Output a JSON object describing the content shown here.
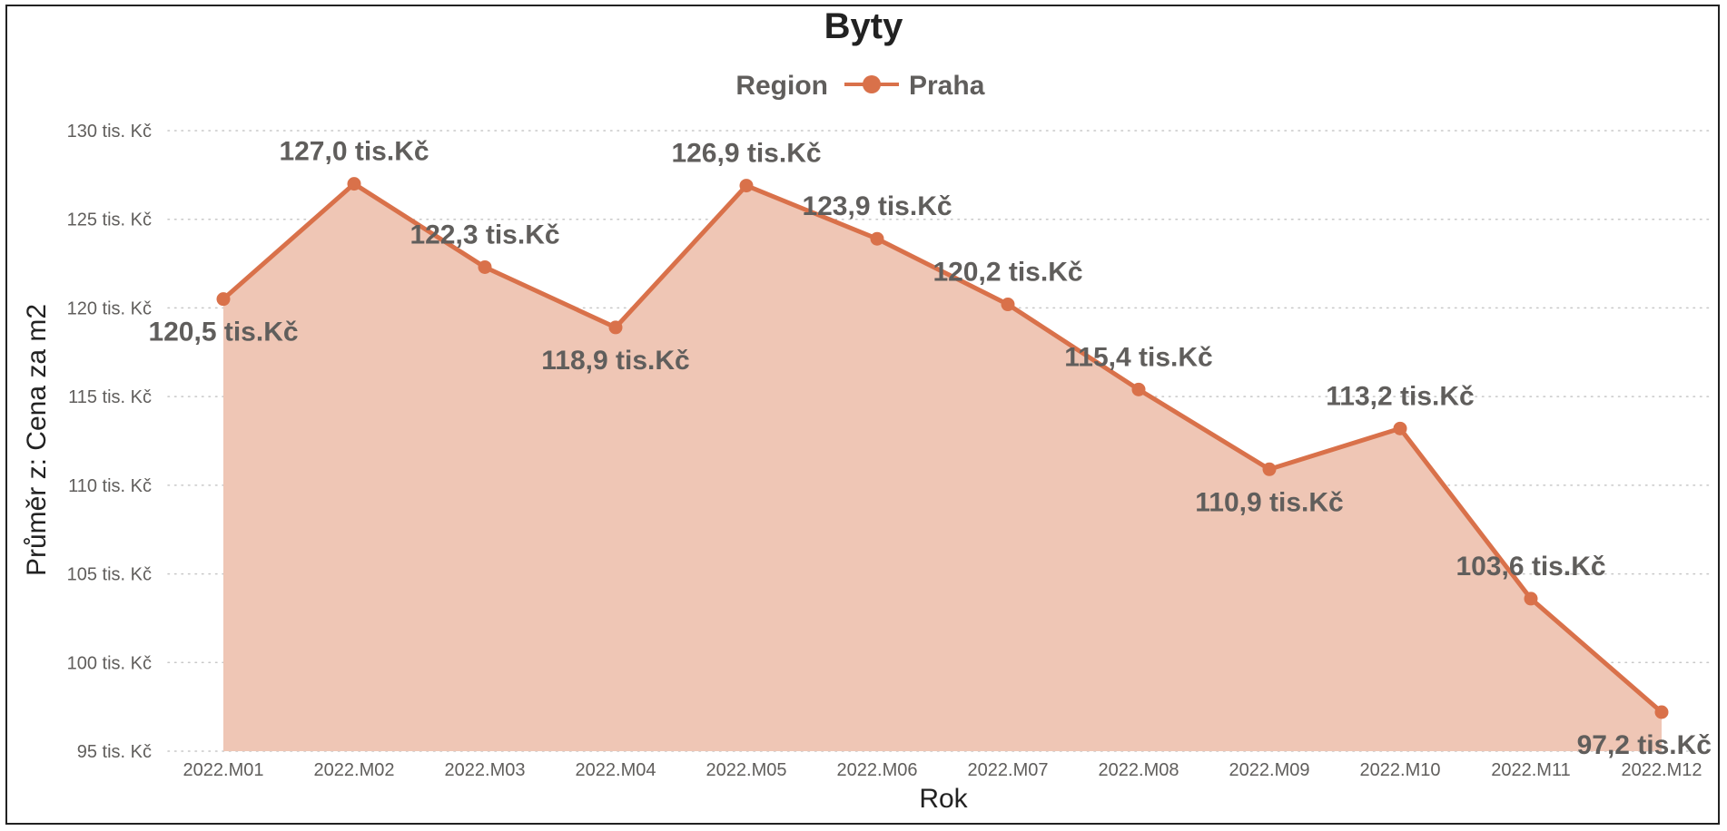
{
  "chart_data": {
    "type": "area",
    "title": "Byty",
    "legend": {
      "title": "Region",
      "position": "top-center"
    },
    "xlabel": "Rok",
    "ylabel": "Průměr z: Cena za m2",
    "ylim": [
      95,
      130
    ],
    "yticks": [
      95,
      100,
      105,
      110,
      115,
      120,
      125,
      130
    ],
    "ytick_labels": [
      "95 tis. Kč",
      "100 tis. Kč",
      "105 tis. Kč",
      "110 tis. Kč",
      "115 tis. Kč",
      "120 tis. Kč",
      "125 tis. Kč",
      "130 tis. Kč"
    ],
    "grid": "horizontal-dotted",
    "categories": [
      "2022.M01",
      "2022.M02",
      "2022.M03",
      "2022.M04",
      "2022.M05",
      "2022.M06",
      "2022.M07",
      "2022.M08",
      "2022.M09",
      "2022.M10",
      "2022.M11",
      "2022.M12"
    ],
    "series": [
      {
        "name": "Praha",
        "color": "#d9714a",
        "fill": "#efc6b5",
        "values": [
          120.5,
          127.0,
          122.3,
          118.9,
          126.9,
          123.9,
          120.2,
          115.4,
          110.9,
          113.2,
          103.6,
          97.2
        ],
        "labels": [
          "120,5 tis.Kč",
          "127,0 tis.Kč",
          "122,3 tis.Kč",
          "118,9 tis.Kč",
          "126,9 tis.Kč",
          "123,9 tis.Kč",
          "120,2 tis.Kč",
          "115,4 tis.Kč",
          "110,9 tis.Kč",
          "113,2 tis.Kč",
          "103,6 tis.Kč",
          "97,2 tis.Kč"
        ]
      }
    ]
  }
}
